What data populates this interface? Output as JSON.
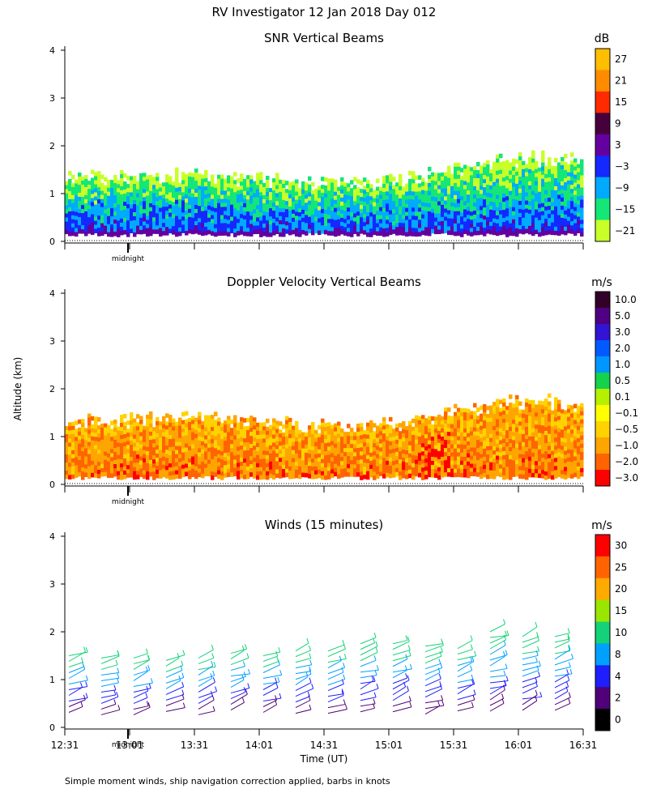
{
  "page_title": "RV Investigator  12 Jan 2018 Day 012",
  "y_axis_label": "Altitude (km)",
  "footnote": "Simple moment winds, ship navigation correction applied, barbs in knots",
  "midnight_label": "midnight",
  "chart_data": [
    {
      "type": "heatmap",
      "title": "SNR Vertical Beams",
      "unit": "dB",
      "ylabel": "Altitude (km)",
      "ylim": [
        0,
        4
      ],
      "yticks": [
        0,
        1,
        2,
        3,
        4
      ],
      "colorbar_labels": [
        "27",
        "21",
        "15",
        "9",
        "3",
        "−3",
        "−9",
        "−15",
        "−21"
      ],
      "colorbar_colors": [
        "#ffbe00",
        "#ff8c00",
        "#ff2a00",
        "#46003c",
        "#6400a0",
        "#1428ff",
        "#00aaff",
        "#14e678",
        "#c8ff28"
      ],
      "layer_top_km": 1.4
    },
    {
      "type": "heatmap",
      "title": "Doppler Velocity Vertical Beams",
      "unit": "m/s",
      "ylabel": "Altitude (km)",
      "ylim": [
        0,
        4
      ],
      "yticks": [
        0,
        1,
        2,
        3,
        4
      ],
      "colorbar_labels": [
        "10.0",
        "5.0",
        "3.0",
        "2.0",
        "1.0",
        "0.5",
        "0.1",
        "−0.1",
        "−0.5",
        "−1.0",
        "−2.0",
        "−3.0"
      ],
      "colorbar_colors": [
        "#320028",
        "#500082",
        "#3214d2",
        "#005aff",
        "#0096ff",
        "#14d24b",
        "#b4f000",
        "#ffff00",
        "#ffd200",
        "#ffa500",
        "#ff6400",
        "#ff0000"
      ],
      "layer_top_km": 1.4
    },
    {
      "type": "scatter",
      "title": "Winds (15 minutes)",
      "unit": "m/s",
      "ylabel": "Altitude (km)",
      "xlabel": "Time (UT)",
      "ylim": [
        0,
        4
      ],
      "yticks": [
        0,
        1,
        2,
        3,
        4
      ],
      "xticks": [
        "12:31",
        "13:01",
        "13:31",
        "14:01",
        "14:31",
        "15:01",
        "15:31",
        "16:01",
        "16:31"
      ],
      "colorbar_labels": [
        "30",
        "25",
        "20",
        "15",
        "10",
        "8",
        "4",
        "2",
        "0"
      ],
      "colorbar_colors": [
        "#ff0000",
        "#ff6400",
        "#ffaa00",
        "#9ae600",
        "#14d278",
        "#00a0ff",
        "#1e1eff",
        "#500078",
        "#000000"
      ],
      "profile_tops_km": [
        1.5,
        1.45,
        1.45,
        1.4,
        1.45,
        1.55,
        1.5,
        1.6,
        1.6,
        1.75,
        1.75,
        1.7,
        1.65,
        2.0,
        1.9,
        1.9
      ]
    }
  ]
}
